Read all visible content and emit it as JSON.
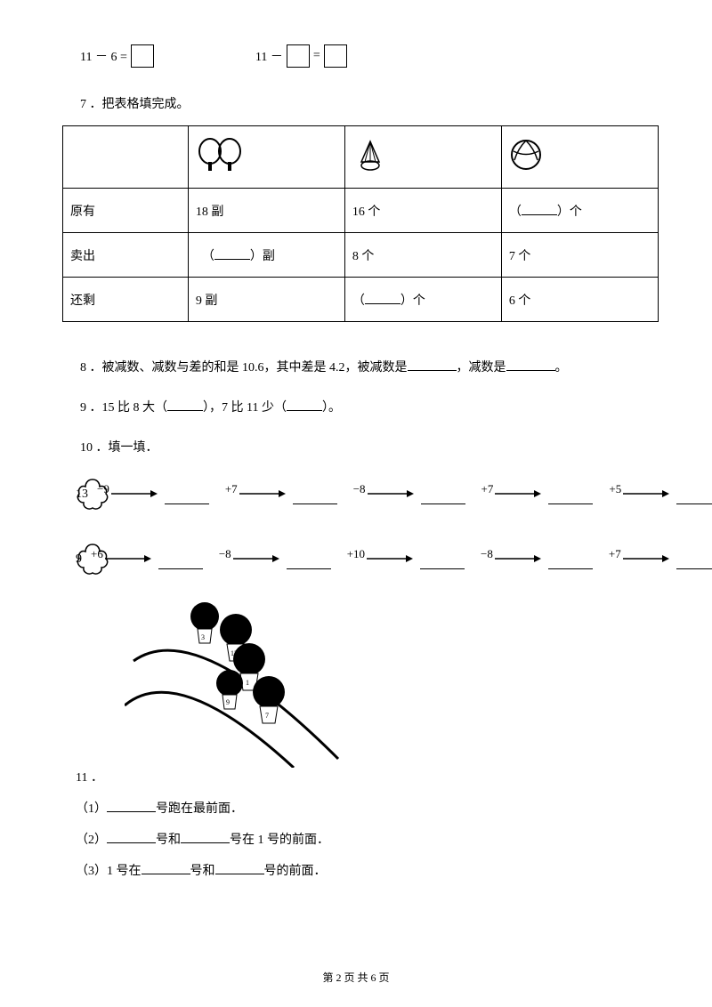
{
  "eq1": {
    "lhs": "11 － 6 =",
    "mid": "11 －",
    "eq": "="
  },
  "q7": "7 ．把表格填完成。",
  "table": {
    "r1": {
      "c1": "",
      "c2": "",
      "c3": "",
      "c4": ""
    },
    "r2": {
      "c1": "原有",
      "c2": "18 副",
      "c3": "16 个",
      "c4_pre": "（",
      "c4_post": "）个"
    },
    "r3": {
      "c1": "卖出",
      "c2_pre": "（",
      "c2_post": "）副",
      "c3": "8 个",
      "c4": "7 个"
    },
    "r4": {
      "c1": "还剩",
      "c2": "9 副",
      "c3_pre": "（",
      "c3_post": "）个",
      "c4": "6 个"
    }
  },
  "q8": {
    "pre": "8 ．被减数、减数与差的和是 10.6，其中差是 4.2，被减数是",
    "mid": "，减数是",
    "end": "。"
  },
  "q9": {
    "pre": "9 ．15 比 8 大（",
    "mid": "），7 比 11 少（",
    "end": "）。"
  },
  "q10": "10 ．填一填．",
  "chain1": {
    "start": "13",
    "ops": [
      "−9",
      "+7",
      "−8",
      "+7",
      "+5"
    ]
  },
  "chain2": {
    "start": "9",
    "ops": [
      "+6",
      "−8",
      "+10",
      "−8",
      "+7"
    ]
  },
  "q11": "11 ．",
  "q11_1": {
    "pre": "（1）",
    "post": "号跑在最前面．"
  },
  "q11_2": {
    "pre": "（2）",
    "mid": "号和",
    "post": "号在 1 号的前面．"
  },
  "q11_3": {
    "pre": "（3）1 号在",
    "mid": "号和",
    "post": "号的前面．"
  },
  "footer": "第 2 页 共 6 页",
  "colors": {
    "text": "#000000",
    "bg": "#ffffff"
  }
}
